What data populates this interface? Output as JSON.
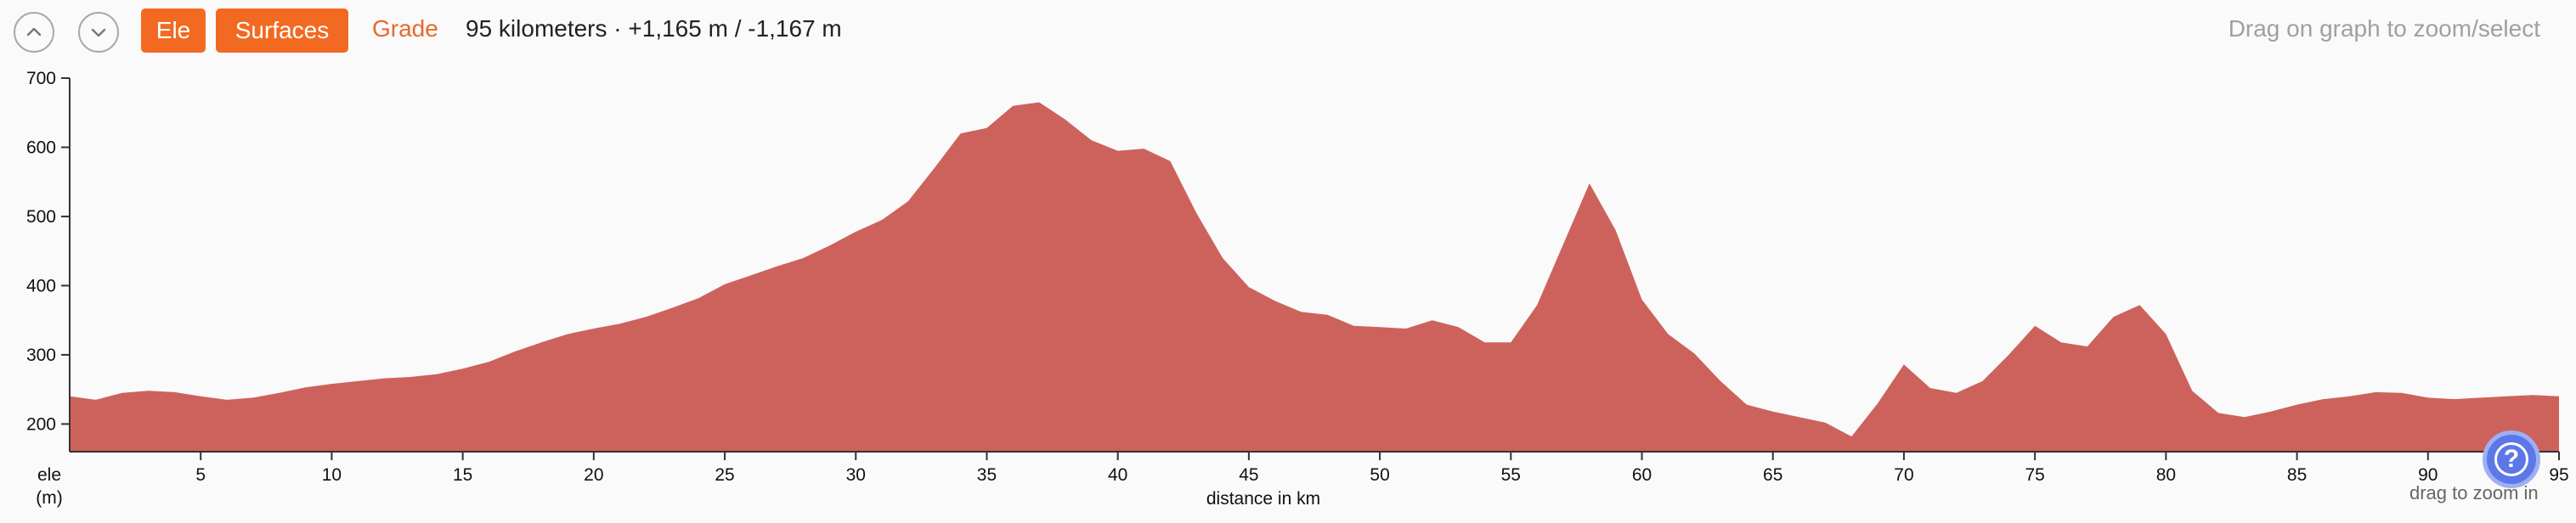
{
  "toolbar": {
    "scroll_up_icon": "chevron-up-icon",
    "scroll_down_icon": "chevron-down-icon",
    "ele_label": "Ele",
    "surfaces_label": "Surfaces",
    "grade_label": "Grade",
    "summary": "95 kilometers · +1,165 m / -1,167 m",
    "hint": "Drag on graph to zoom/select",
    "accent_color": "#f26a21"
  },
  "help": {
    "icon": "question-icon",
    "glyph": "?",
    "hint": "drag to zoom in"
  },
  "chart_data": {
    "type": "area",
    "title": "",
    "xlabel": "distance in km",
    "ylabel": "ele\n(m)",
    "xlim": [
      0,
      95
    ],
    "ylim": [
      160,
      700
    ],
    "x_ticks": [
      5,
      10,
      15,
      20,
      25,
      30,
      35,
      40,
      45,
      50,
      55,
      60,
      65,
      70,
      75,
      80,
      85,
      90,
      95
    ],
    "y_ticks": [
      200,
      300,
      400,
      500,
      600,
      700
    ],
    "fill_color": "#cd625c",
    "grid": false,
    "series": [
      {
        "name": "",
        "x": [
          0,
          1,
          2,
          3,
          4,
          5,
          6,
          7,
          8,
          9,
          10,
          11,
          12,
          13,
          14,
          15,
          16,
          17,
          18,
          19,
          20,
          21,
          22,
          23,
          24,
          25,
          26,
          27,
          28,
          29,
          30,
          31,
          32,
          33,
          34,
          35,
          36,
          37,
          38,
          39,
          40,
          41,
          42,
          43,
          44,
          45,
          46,
          47,
          48,
          49,
          50,
          51,
          52,
          53,
          54,
          55,
          56,
          57,
          58,
          59,
          60,
          61,
          62,
          63,
          64,
          65,
          66,
          67,
          68,
          69,
          70,
          71,
          72,
          73,
          74,
          75,
          76,
          77,
          78,
          79,
          80,
          81,
          82,
          83,
          84,
          85,
          86,
          87,
          88,
          89,
          90,
          91,
          92,
          93,
          94,
          95
        ],
        "values": [
          240,
          235,
          245,
          248,
          246,
          240,
          235,
          238,
          245,
          253,
          258,
          262,
          266,
          268,
          272,
          280,
          290,
          305,
          318,
          330,
          338,
          345,
          355,
          368,
          382,
          402,
          415,
          428,
          440,
          458,
          478,
          495,
          522,
          570,
          620,
          628,
          660,
          665,
          640,
          610,
          595,
          598,
          580,
          505,
          440,
          398,
          378,
          362,
          358,
          342,
          340,
          338,
          350,
          340,
          318,
          318,
          372,
          460,
          548,
          480,
          380,
          330,
          302,
          262,
          228,
          218,
          210,
          202,
          182,
          230,
          286,
          252,
          245,
          262,
          300,
          342,
          318,
          312,
          355,
          372,
          330,
          248,
          216,
          210,
          218,
          228,
          236,
          240,
          246,
          245,
          238,
          236,
          238,
          240,
          242,
          240
        ]
      }
    ]
  }
}
